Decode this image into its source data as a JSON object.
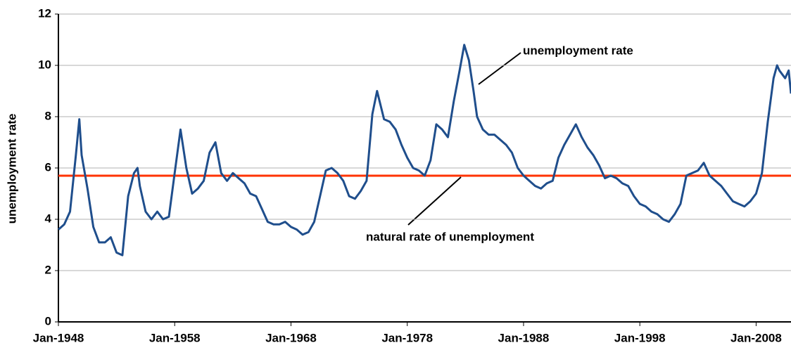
{
  "chart_data": {
    "type": "line",
    "y_label": "unemployment rate",
    "x": [
      1948.0,
      1948.5,
      1949.0,
      1949.5,
      1949.8,
      1950.0,
      1950.5,
      1951.0,
      1951.5,
      1952.0,
      1952.5,
      1953.0,
      1953.5,
      1954.0,
      1954.5,
      1954.8,
      1955.0,
      1955.5,
      1956.0,
      1956.5,
      1957.0,
      1957.5,
      1958.0,
      1958.5,
      1959.0,
      1959.5,
      1960.0,
      1960.5,
      1961.0,
      1961.5,
      1962.0,
      1962.5,
      1963.0,
      1963.5,
      1964.0,
      1964.5,
      1965.0,
      1965.5,
      1966.0,
      1966.5,
      1967.0,
      1967.5,
      1968.0,
      1968.5,
      1969.0,
      1969.5,
      1970.0,
      1970.5,
      1971.0,
      1971.5,
      1972.0,
      1972.5,
      1973.0,
      1973.5,
      1974.0,
      1974.5,
      1975.0,
      1975.4,
      1976.0,
      1976.5,
      1977.0,
      1977.5,
      1978.0,
      1978.5,
      1979.0,
      1979.5,
      1980.0,
      1980.5,
      1981.0,
      1981.5,
      1982.0,
      1982.5,
      1982.9,
      1983.3,
      1983.7,
      1984.0,
      1984.5,
      1985.0,
      1985.5,
      1986.0,
      1986.5,
      1987.0,
      1987.5,
      1988.0,
      1988.5,
      1989.0,
      1989.5,
      1990.0,
      1990.5,
      1991.0,
      1991.5,
      1992.0,
      1992.5,
      1993.0,
      1993.5,
      1994.0,
      1994.5,
      1995.0,
      1995.5,
      1996.0,
      1996.5,
      1997.0,
      1997.5,
      1998.0,
      1998.5,
      1999.0,
      1999.5,
      2000.0,
      2000.5,
      2001.0,
      2001.5,
      2002.0,
      2002.5,
      2003.0,
      2003.5,
      2004.0,
      2004.5,
      2005.0,
      2005.5,
      2006.0,
      2006.5,
      2007.0,
      2007.5,
      2008.0,
      2008.5,
      2009.0,
      2009.5,
      2009.8,
      2010.0,
      2010.5,
      2010.8,
      2011.0
    ],
    "series": [
      {
        "name": "unemployment rate",
        "color": "#1f4e8c",
        "values": [
          3.6,
          3.8,
          4.3,
          6.5,
          7.9,
          6.5,
          5.2,
          3.7,
          3.1,
          3.1,
          3.3,
          2.7,
          2.6,
          4.9,
          5.8,
          6.0,
          5.3,
          4.3,
          4.0,
          4.3,
          4.0,
          4.1,
          5.8,
          7.5,
          6.0,
          5.0,
          5.2,
          5.5,
          6.6,
          7.0,
          5.8,
          5.5,
          5.8,
          5.6,
          5.4,
          5.0,
          4.9,
          4.4,
          3.9,
          3.8,
          3.8,
          3.9,
          3.7,
          3.6,
          3.4,
          3.5,
          3.9,
          4.9,
          5.9,
          6.0,
          5.8,
          5.5,
          4.9,
          4.8,
          5.1,
          5.5,
          8.1,
          9.0,
          7.9,
          7.8,
          7.5,
          6.9,
          6.4,
          6.0,
          5.9,
          5.7,
          6.3,
          7.7,
          7.5,
          7.2,
          8.6,
          9.8,
          10.8,
          10.2,
          9.0,
          8.0,
          7.5,
          7.3,
          7.3,
          7.1,
          6.9,
          6.6,
          6.0,
          5.7,
          5.5,
          5.3,
          5.2,
          5.4,
          5.5,
          6.4,
          6.9,
          7.3,
          7.7,
          7.2,
          6.8,
          6.5,
          6.1,
          5.6,
          5.7,
          5.6,
          5.4,
          5.3,
          4.9,
          4.6,
          4.5,
          4.3,
          4.2,
          4.0,
          3.9,
          4.2,
          4.6,
          5.7,
          5.8,
          5.9,
          6.2,
          5.7,
          5.5,
          5.3,
          5.0,
          4.7,
          4.6,
          4.5,
          4.7,
          5.0,
          5.8,
          7.8,
          9.5,
          10.0,
          9.8,
          9.5,
          9.8,
          8.9
        ]
      }
    ],
    "reference_lines": [
      {
        "label": "natural rate of unemployment",
        "value": 5.7,
        "color": "#ff3300"
      }
    ],
    "xlim": [
      1948,
      2011
    ],
    "xticks": [
      {
        "value": 1948,
        "label": "Jan-1948"
      },
      {
        "value": 1958,
        "label": "Jan-1958"
      },
      {
        "value": 1968,
        "label": "Jan-1968"
      },
      {
        "value": 1978,
        "label": "Jan-1978"
      },
      {
        "value": 1988,
        "label": "Jan-1988"
      },
      {
        "value": 1998,
        "label": "Jan-1998"
      },
      {
        "value": 2008,
        "label": "Jan-2008"
      }
    ],
    "ylim": [
      0,
      12
    ],
    "yticks": [
      0,
      2,
      4,
      6,
      8,
      10,
      12
    ],
    "grid": true
  }
}
